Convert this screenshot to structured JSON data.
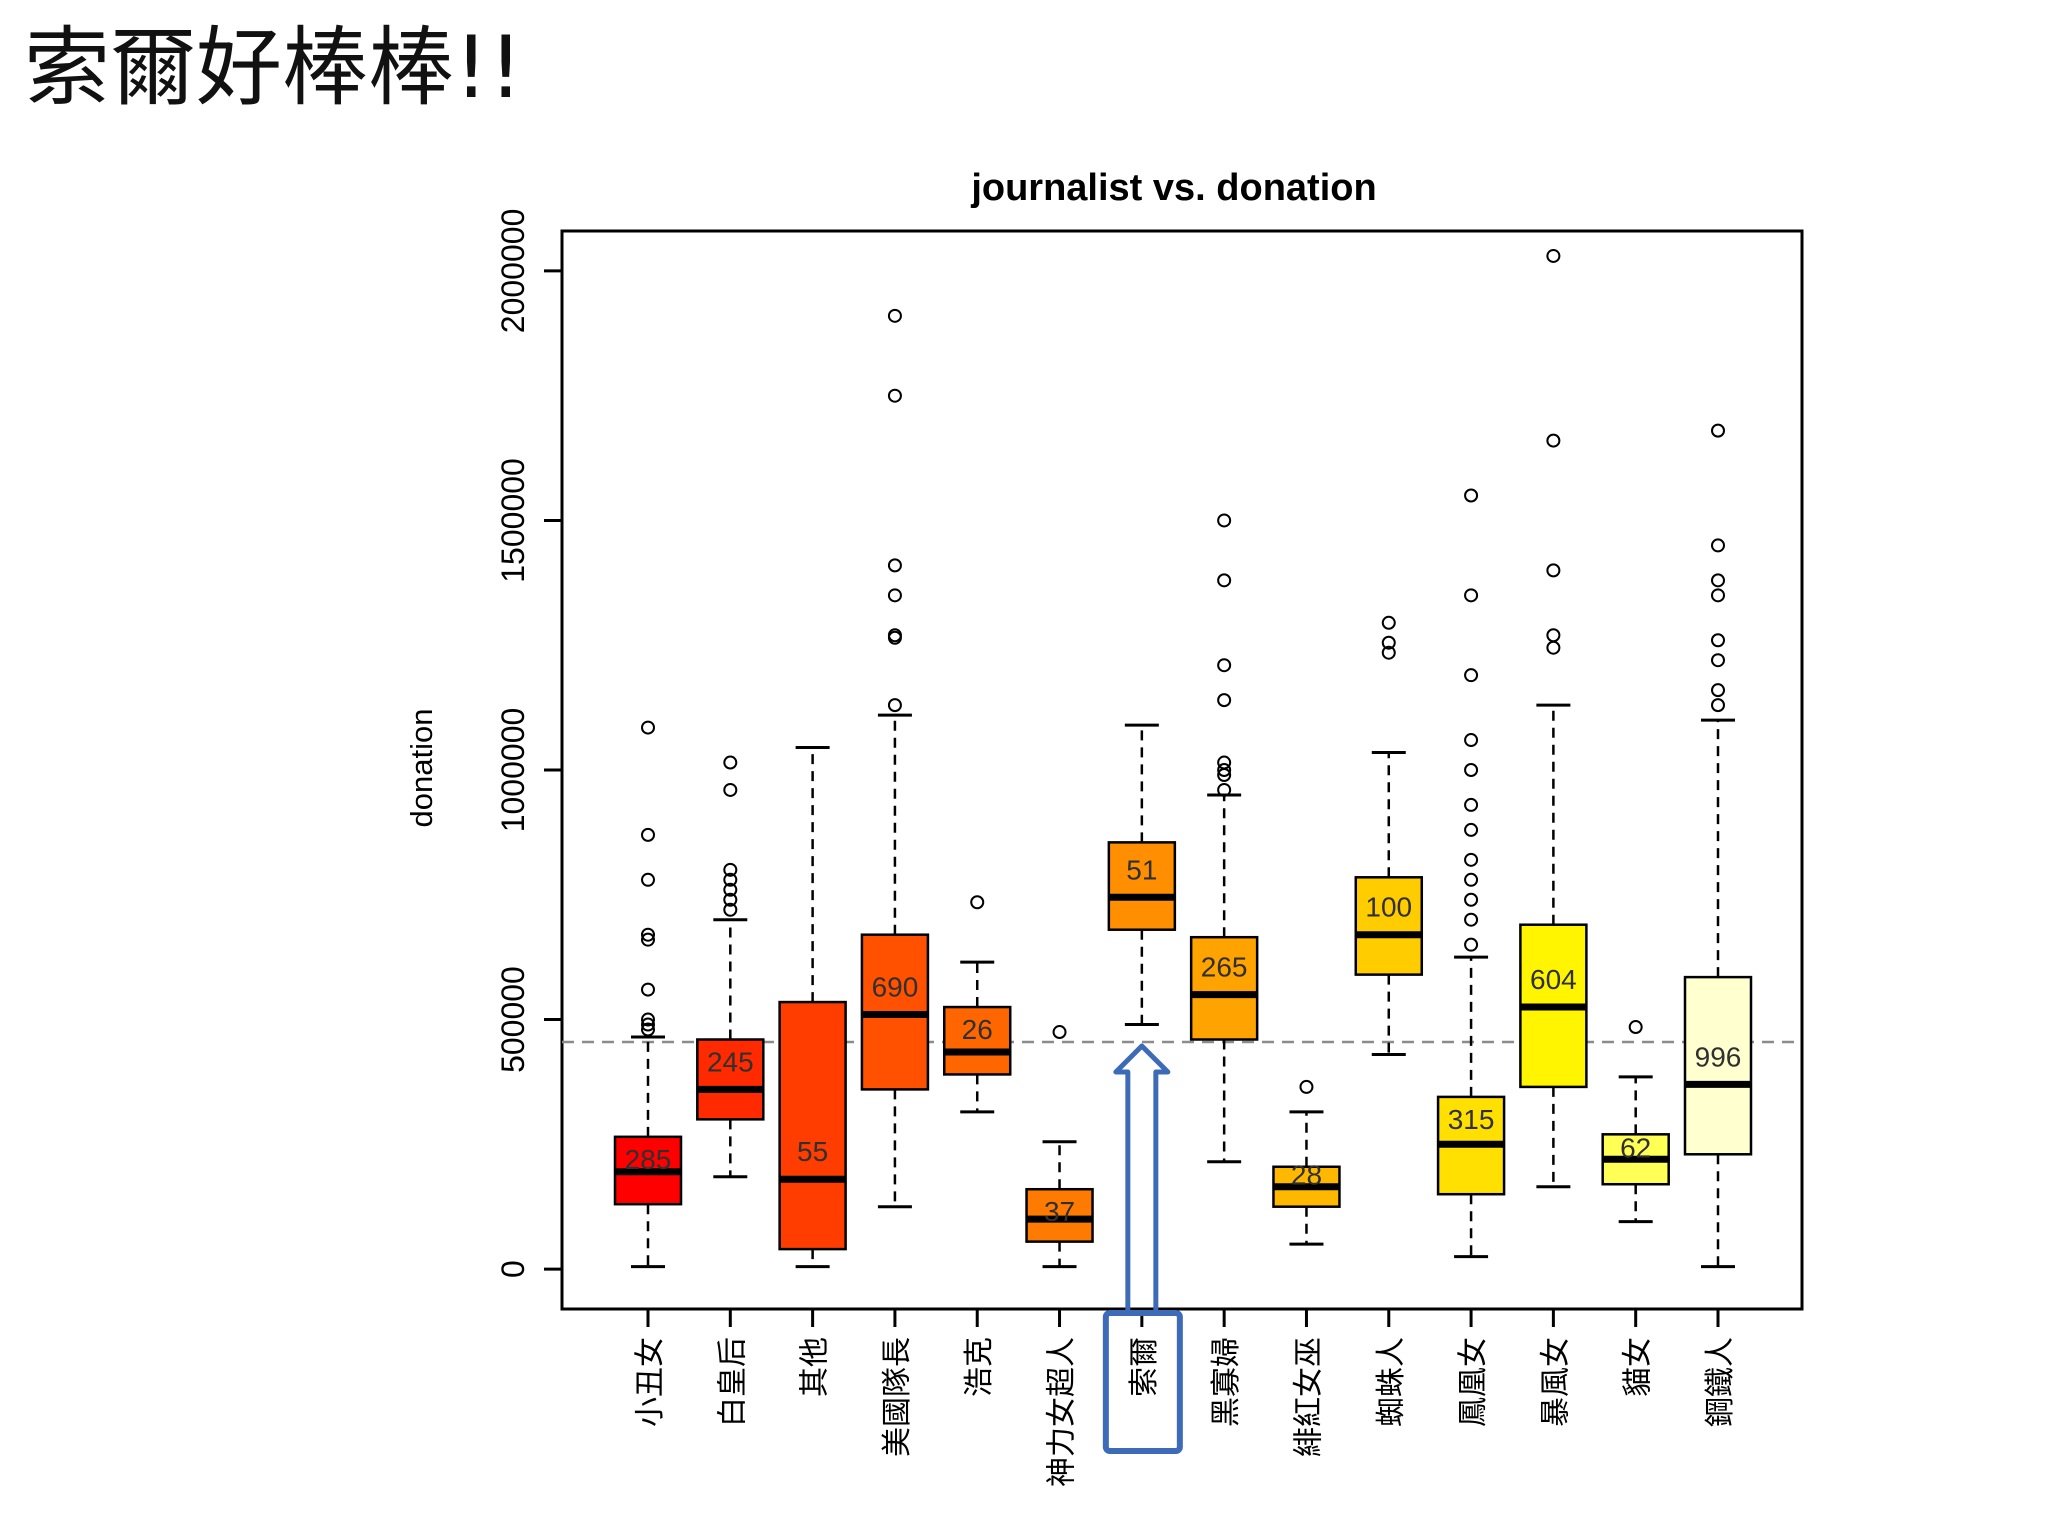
{
  "slide": {
    "title": "索爾好棒棒!!"
  },
  "chart_data": {
    "type": "box",
    "title": "journalist vs. donation",
    "xlabel": "",
    "ylabel": "donation",
    "ylim": [
      -80000,
      2080000
    ],
    "y_ticks": [
      "0",
      "500000",
      "1000000",
      "1500000",
      "2000000"
    ],
    "y_tick_values": [
      0,
      500000,
      1000000,
      1500000,
      2000000
    ],
    "reference_line": 455000,
    "highlight": "索爾",
    "boxes": [
      {
        "category": "小丑女",
        "count": "285",
        "color": "#ff0000",
        "whisker_low": 5000,
        "q1": 130000,
        "median": 195000,
        "q3": 265000,
        "whisker_high": 465000,
        "outliers": [
          480000,
          490000,
          500000,
          560000,
          660000,
          670000,
          780000,
          870000,
          1085000
        ]
      },
      {
        "category": "白皇后",
        "count": "245",
        "color": "#ff2a00",
        "whisker_low": 185000,
        "q1": 300000,
        "median": 360000,
        "q3": 460000,
        "whisker_high": 700000,
        "outliers": [
          720000,
          740000,
          760000,
          780000,
          800000,
          960000,
          1015000
        ]
      },
      {
        "category": "其他",
        "count": "55",
        "color": "#ff3d00",
        "whisker_low": 5000,
        "q1": 40000,
        "median": 180000,
        "q3": 535000,
        "whisker_high": 1045000,
        "outliers": []
      },
      {
        "category": "美國隊長",
        "count": "690",
        "color": "#ff5100",
        "whisker_low": 125000,
        "q1": 360000,
        "median": 510000,
        "q3": 670000,
        "whisker_high": 1110000,
        "outliers": [
          1130000,
          1265000,
          1270000,
          1350000,
          1410000,
          1750000,
          1910000
        ]
      },
      {
        "category": "浩克",
        "count": "26",
        "color": "#ff6600",
        "whisker_low": 315000,
        "q1": 390000,
        "median": 435000,
        "q3": 525000,
        "whisker_high": 615000,
        "outliers": [
          735000
        ]
      },
      {
        "category": "神力女超人",
        "count": "37",
        "color": "#ff7a00",
        "whisker_low": 5000,
        "q1": 55000,
        "median": 100000,
        "q3": 160000,
        "whisker_high": 255000,
        "outliers": [
          475000
        ]
      },
      {
        "category": "索爾",
        "count": "51",
        "color": "#ff8f00",
        "whisker_low": 490000,
        "q1": 680000,
        "median": 745000,
        "q3": 855000,
        "whisker_high": 1090000,
        "outliers": []
      },
      {
        "category": "黑寡婦",
        "count": "265",
        "color": "#ffa300",
        "whisker_low": 215000,
        "q1": 460000,
        "median": 550000,
        "q3": 665000,
        "whisker_high": 950000,
        "outliers": [
          960000,
          990000,
          1000000,
          1015000,
          1140000,
          1210000,
          1380000,
          1500000
        ]
      },
      {
        "category": "緋紅女巫",
        "count": "28",
        "color": "#ffb800",
        "whisker_low": 50000,
        "q1": 125000,
        "median": 165000,
        "q3": 205000,
        "whisker_high": 315000,
        "outliers": [
          365000
        ]
      },
      {
        "category": "蜘蛛人",
        "count": "100",
        "color": "#ffcc00",
        "whisker_low": 430000,
        "q1": 590000,
        "median": 670000,
        "q3": 785000,
        "whisker_high": 1035000,
        "outliers": [
          1235000,
          1255000,
          1295000
        ]
      },
      {
        "category": "鳳凰女",
        "count": "315",
        "color": "#ffe000",
        "whisker_low": 25000,
        "q1": 150000,
        "median": 250000,
        "q3": 345000,
        "whisker_high": 625000,
        "outliers": [
          650000,
          700000,
          740000,
          780000,
          820000,
          880000,
          930000,
          1000000,
          1060000,
          1190000,
          1350000,
          1550000
        ]
      },
      {
        "category": "暴風女",
        "count": "604",
        "color": "#fff500",
        "whisker_low": 165000,
        "q1": 365000,
        "median": 525000,
        "q3": 690000,
        "whisker_high": 1130000,
        "outliers": [
          1245000,
          1270000,
          1400000,
          1660000,
          2030000
        ]
      },
      {
        "category": "貓女",
        "count": "62",
        "color": "#ffff55",
        "whisker_low": 95000,
        "q1": 170000,
        "median": 220000,
        "q3": 270000,
        "whisker_high": 385000,
        "outliers": [
          485000
        ]
      },
      {
        "category": "鋼鐵人",
        "count": "996",
        "color": "#ffffd0",
        "whisker_low": 5000,
        "q1": 230000,
        "median": 370000,
        "q3": 585000,
        "whisker_high": 1100000,
        "outliers": [
          1130000,
          1160000,
          1220000,
          1260000,
          1350000,
          1380000,
          1450000,
          1680000
        ]
      }
    ]
  }
}
